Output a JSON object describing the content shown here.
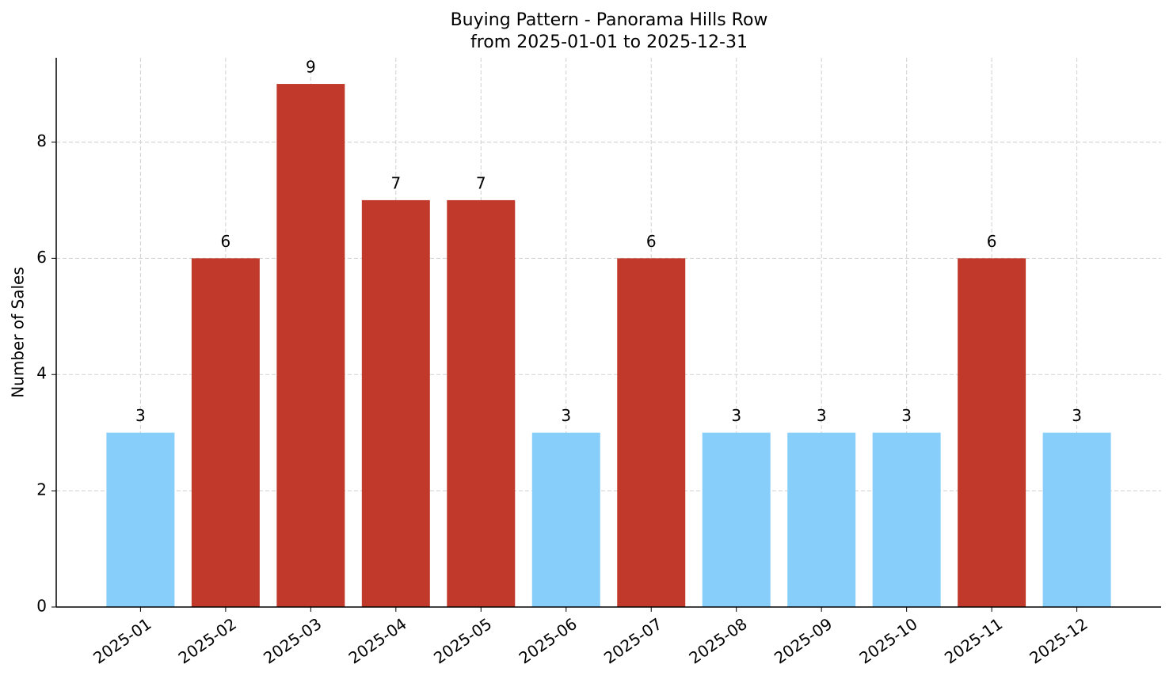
{
  "chart_data": {
    "type": "bar",
    "title": "Buying Pattern - Panorama Hills Row",
    "subtitle": "from 2025-01-01 to 2025-12-31",
    "y_label": "Number of Sales",
    "categories": [
      "2025-01",
      "2025-02",
      "2025-03",
      "2025-04",
      "2025-05",
      "2025-06",
      "2025-07",
      "2025-08",
      "2025-09",
      "2025-10",
      "2025-11",
      "2025-12"
    ],
    "values": [
      3,
      6,
      9,
      7,
      7,
      3,
      6,
      3,
      3,
      3,
      6,
      3
    ],
    "colors": [
      "#87cefa",
      "#c0392b",
      "#c0392b",
      "#c0392b",
      "#c0392b",
      "#87cefa",
      "#c0392b",
      "#87cefa",
      "#87cefa",
      "#87cefa",
      "#c0392b",
      "#87cefa"
    ],
    "ylim": [
      0,
      9.45
    ],
    "yticks": [
      0,
      2,
      4,
      6,
      8
    ],
    "grid": true
  }
}
